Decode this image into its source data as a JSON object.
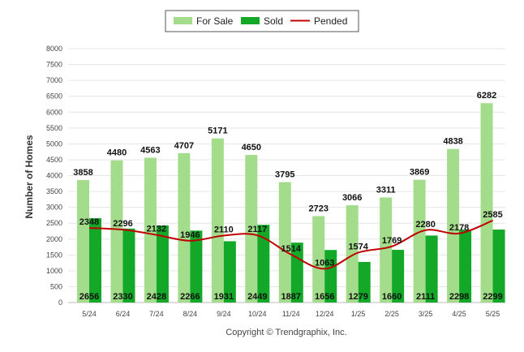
{
  "chart_data": {
    "type": "bar",
    "categories": [
      "5/24",
      "6/24",
      "7/24",
      "8/24",
      "9/24",
      "10/24",
      "11/24",
      "12/24",
      "1/25",
      "2/25",
      "3/25",
      "4/25",
      "5/25"
    ],
    "series": [
      {
        "name": "For Sale",
        "type": "bar",
        "color": "#a3dc8a",
        "values": [
          3858,
          4480,
          4563,
          4707,
          5171,
          4650,
          3795,
          2723,
          3066,
          3311,
          3869,
          4838,
          6282
        ]
      },
      {
        "name": "Sold",
        "type": "bar",
        "color": "#13a828",
        "values": [
          2656,
          2330,
          2428,
          2266,
          1931,
          2449,
          1887,
          1656,
          1279,
          1660,
          2111,
          2298,
          2299
        ]
      },
      {
        "name": "Pended",
        "type": "line",
        "color": "#c00000",
        "values": [
          2348,
          2296,
          2132,
          1946,
          2110,
          2117,
          1514,
          1063,
          1574,
          1769,
          2280,
          2178,
          2585
        ]
      }
    ],
    "title": "",
    "xlabel": "",
    "ylabel": "Number of Homes",
    "ylim": [
      0,
      8000
    ],
    "yticks": [
      0,
      500,
      1000,
      1500,
      2000,
      2500,
      3000,
      3500,
      4000,
      4500,
      5000,
      5500,
      6000,
      6500,
      7000,
      7500,
      8000
    ],
    "grid": true,
    "legend_position": "top-center",
    "footer": "Copyright © Trendgraphix, Inc."
  }
}
